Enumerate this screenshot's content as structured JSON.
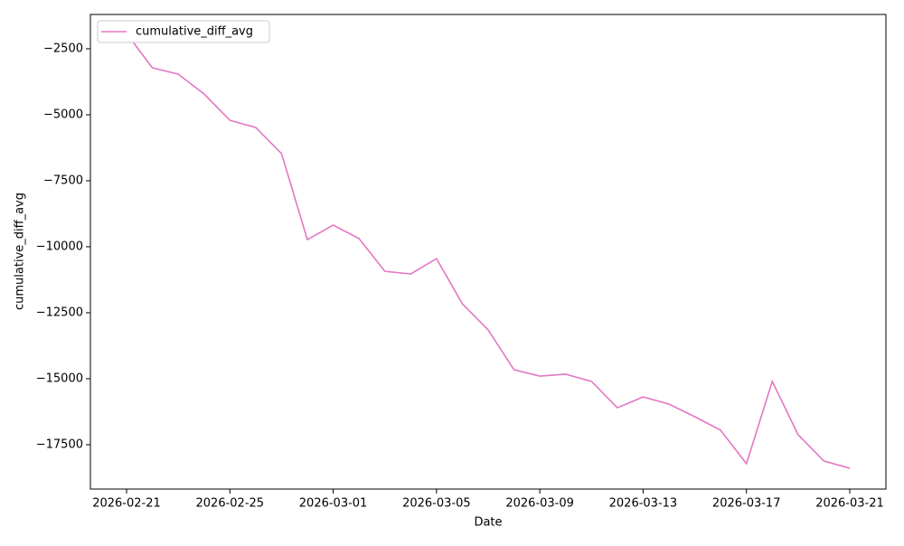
{
  "chart_data": {
    "type": "line",
    "xlabel": "Date",
    "ylabel": "cumulative_diff_avg",
    "x": [
      "2026-02-21",
      "2026-02-22",
      "2026-02-23",
      "2026-02-24",
      "2026-02-25",
      "2026-02-26",
      "2026-02-27",
      "2026-02-28",
      "2026-03-01",
      "2026-03-02",
      "2026-03-03",
      "2026-03-04",
      "2026-03-05",
      "2026-03-06",
      "2026-03-07",
      "2026-03-08",
      "2026-03-09",
      "2026-03-10",
      "2026-03-11",
      "2026-03-12",
      "2026-03-13",
      "2026-03-14",
      "2026-03-15",
      "2026-03-16",
      "2026-03-17",
      "2026-03-18",
      "2026-03-19",
      "2026-03-20",
      "2026-03-21"
    ],
    "series": [
      {
        "name": "cumulative_diff_avg",
        "color": "#e377c2",
        "values": [
          -1920,
          -3220,
          -3460,
          -4210,
          -5210,
          -5480,
          -6470,
          -9730,
          -9180,
          -9690,
          -10930,
          -11030,
          -10450,
          -12160,
          -13150,
          -14660,
          -14900,
          -14830,
          -15100,
          -16100,
          -15690,
          -15960,
          -16440,
          -16950,
          -18220,
          -15100,
          -17120,
          -18120,
          -18390
        ]
      }
    ],
    "xlim": [
      "2026-02-19T14:24",
      "2026-03-22T09:36"
    ],
    "xticks": [
      "2026-02-21",
      "2026-02-25",
      "2026-03-01",
      "2026-03-05",
      "2026-03-09",
      "2026-03-13",
      "2026-03-17",
      "2026-03-21"
    ],
    "ylim": [
      -19180,
      -1200
    ],
    "yticks": [
      {
        "value": -2500,
        "label": "−2500"
      },
      {
        "value": -5000,
        "label": "−5000"
      },
      {
        "value": -7500,
        "label": "−7500"
      },
      {
        "value": -10000,
        "label": "−10000"
      },
      {
        "value": -12500,
        "label": "−12500"
      },
      {
        "value": -15000,
        "label": "−15000"
      },
      {
        "value": -17500,
        "label": "−17500"
      }
    ],
    "grid": false,
    "legend": "upper left"
  }
}
